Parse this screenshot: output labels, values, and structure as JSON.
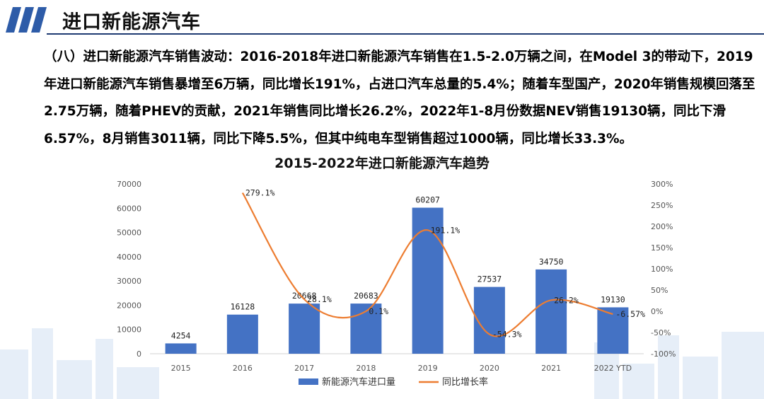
{
  "header": {
    "title": "进口新能源汽车"
  },
  "paragraph": {
    "text": "（八）进口新能源汽车销售波动：2016-2018年进口新能源汽车销售在1.5-2.0万辆之间，在Model 3的带动下，2019年进口新能源汽车销售暴增至6万辆，同比增长191%，占进口汽车总量的5.4%；随着车型国产，2020年销售规模回落至2.75万辆，随着PHEV的贡献，2021年销售同比增长26.2%，2022年1-8月份数据NEV销售19130辆，同比下滑6.57%，8月销售3011辆，同比下降5.5%，但其中纯电车型销售超过1000辆，同比增长33.3%。"
  },
  "colors": {
    "bar": "#4472c4",
    "line": "#ed7d31",
    "header_icon": "#2e5ca8",
    "header_rule": "#1f3b72"
  },
  "chart_data": {
    "type": "bar",
    "title": "2015-2022年进口新能源汽车趋势",
    "categories": [
      "2015",
      "2016",
      "2017",
      "2018",
      "2019",
      "2020",
      "2021",
      "2022 YTD"
    ],
    "series": [
      {
        "name": "新能源汽车进口量",
        "type": "bar",
        "axis": "left",
        "values": [
          4254,
          16128,
          20668,
          20683,
          60207,
          27537,
          34750,
          19130
        ],
        "labels": [
          "4254",
          "16128",
          "20668",
          "20683",
          "60207",
          "27537",
          "34750",
          "19130"
        ]
      },
      {
        "name": "同比增长率",
        "type": "line",
        "axis": "right",
        "smooth": true,
        "values": [
          null,
          279.1,
          28.1,
          0.1,
          191.1,
          -54.3,
          26.2,
          -6.57
        ],
        "labels": [
          "",
          "279.1%",
          "28.1%",
          "0.1%",
          "191.1%",
          "-54.3%",
          "26.2%",
          "-6.57%"
        ]
      }
    ],
    "y_left": {
      "min": 0,
      "max": 70000,
      "ticks": [
        "0",
        "10000",
        "20000",
        "30000",
        "40000",
        "50000",
        "60000",
        "70000"
      ]
    },
    "y_right": {
      "min": -100,
      "max": 300,
      "ticks": [
        "-100%",
        "-50%",
        "0%",
        "50%",
        "100%",
        "150%",
        "200%",
        "250%",
        "300%"
      ]
    },
    "legend_position": "bottom",
    "grid": false
  }
}
